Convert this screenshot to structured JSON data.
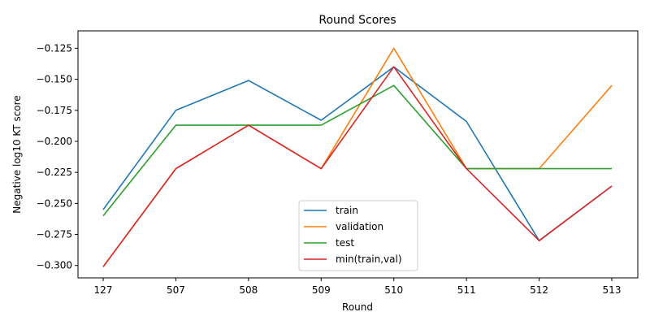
{
  "chart_data": {
    "type": "line",
    "title": "Round Scores",
    "xlabel": "Round",
    "ylabel": "Negative log10 KT score",
    "categories": [
      "127",
      "507",
      "508",
      "509",
      "510",
      "511",
      "512",
      "513"
    ],
    "ylim": [
      -0.31,
      -0.111
    ],
    "yticks": [
      -0.3,
      -0.275,
      -0.25,
      -0.225,
      -0.2,
      -0.175,
      -0.15,
      -0.125
    ],
    "ytick_labels": [
      "−0.300",
      "−0.275",
      "−0.250",
      "−0.225",
      "−0.200",
      "−0.175",
      "−0.150",
      "−0.125"
    ],
    "grid": false,
    "legend_position": "lower-center",
    "series": [
      {
        "name": "train",
        "color": "#1f77b4",
        "values": [
          -0.255,
          -0.175,
          -0.151,
          -0.183,
          -0.14,
          -0.184,
          -0.28,
          -0.236
        ]
      },
      {
        "name": "validation",
        "color": "#ff7f0e",
        "values": [
          -0.301,
          -0.222,
          -0.187,
          -0.222,
          -0.125,
          -0.222,
          -0.222,
          -0.155
        ]
      },
      {
        "name": "test",
        "color": "#2ca02c",
        "values": [
          -0.26,
          -0.187,
          -0.187,
          -0.187,
          -0.155,
          -0.222,
          -0.222,
          -0.222
        ]
      },
      {
        "name": "min(train,val)",
        "color": "#d62728",
        "values": [
          -0.301,
          -0.222,
          -0.187,
          -0.222,
          -0.14,
          -0.222,
          -0.28,
          -0.236
        ]
      }
    ]
  }
}
